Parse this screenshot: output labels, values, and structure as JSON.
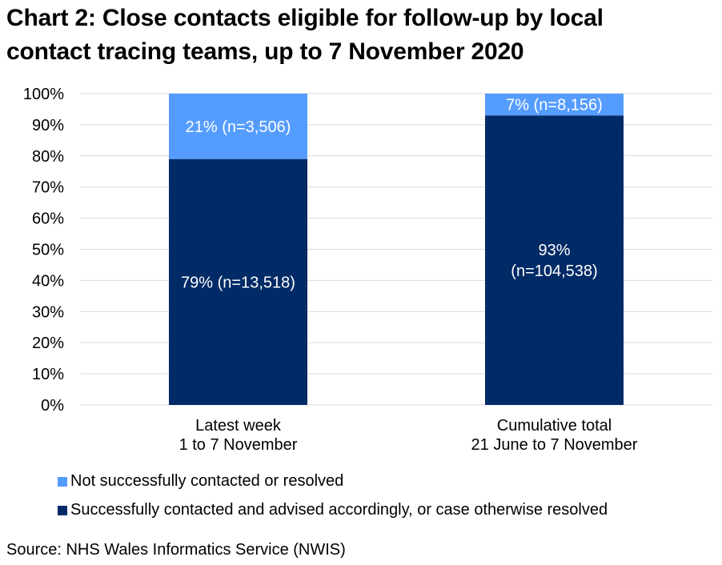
{
  "chart_data": {
    "type": "bar",
    "stacked": true,
    "title": "Chart 2: Close contacts eligible for follow-up by local contact tracing teams, up to 7 November 2020",
    "title_lines": [
      "Chart 2: Close contacts eligible for follow-up by local",
      "contact tracing teams, up to 7 November 2020"
    ],
    "categories": [
      [
        "Latest week",
        "1 to 7 November"
      ],
      [
        "Cumulative total",
        "21 June to 7 November"
      ]
    ],
    "series": [
      {
        "name": "Successfully contacted and advised accordingly, or case otherwise resolved",
        "color": "#002b66",
        "values": [
          79,
          93
        ],
        "labels": [
          [
            "79% (n=13,518)"
          ],
          [
            "93%",
            "(n=104,538)"
          ]
        ]
      },
      {
        "name": "Not successfully contacted or resolved",
        "color": "#559cff",
        "values": [
          21,
          7
        ],
        "labels": [
          [
            "21% (n=3,506)"
          ],
          [
            "7% (n=8,156)"
          ]
        ]
      }
    ],
    "ylim": [
      0,
      100
    ],
    "yticks": [
      "0%",
      "10%",
      "20%",
      "30%",
      "40%",
      "50%",
      "60%",
      "70%",
      "80%",
      "90%",
      "100%"
    ],
    "xlabel": "",
    "ylabel": "",
    "grid": true,
    "legend_position": "bottom",
    "gridline_color": "#d9d9d9"
  },
  "legend": [
    {
      "label": "Not successfully contacted or resolved",
      "color": "#559cff"
    },
    {
      "label": "Successfully contacted and advised accordingly, or case otherwise resolved",
      "color": "#002b66"
    }
  ],
  "source": "Source: NHS Wales Informatics Service (NWIS)"
}
